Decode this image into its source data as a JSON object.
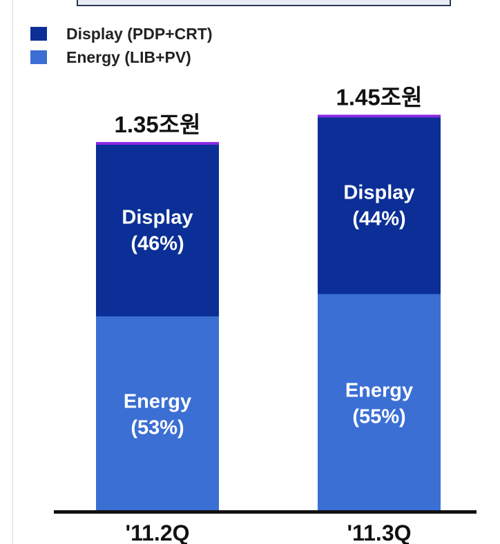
{
  "chart_data": {
    "type": "bar",
    "stacked": true,
    "unit": "조원",
    "categories": [
      "'11.2Q",
      "'11.3Q"
    ],
    "totals": [
      1.35,
      1.45
    ],
    "total_labels": [
      "1.35조원",
      "1.45조원"
    ],
    "series": [
      {
        "name": "Energy (LIB+PV)",
        "color": "#3b6fd4",
        "share": [
          0.53,
          0.55
        ],
        "segment_labels": [
          [
            "Energy",
            "(53%)"
          ],
          [
            "Energy",
            "(55%)"
          ]
        ]
      },
      {
        "name": "Display (PDP+CRT)",
        "color": "#0b2f96",
        "share": [
          0.46,
          0.44
        ],
        "segment_labels": [
          [
            "Display",
            "(46%)"
          ],
          [
            "Display",
            "(44%)"
          ]
        ]
      }
    ],
    "top_cap_color": "#8a2be2",
    "legend_position": "top-left",
    "grid": false
  }
}
